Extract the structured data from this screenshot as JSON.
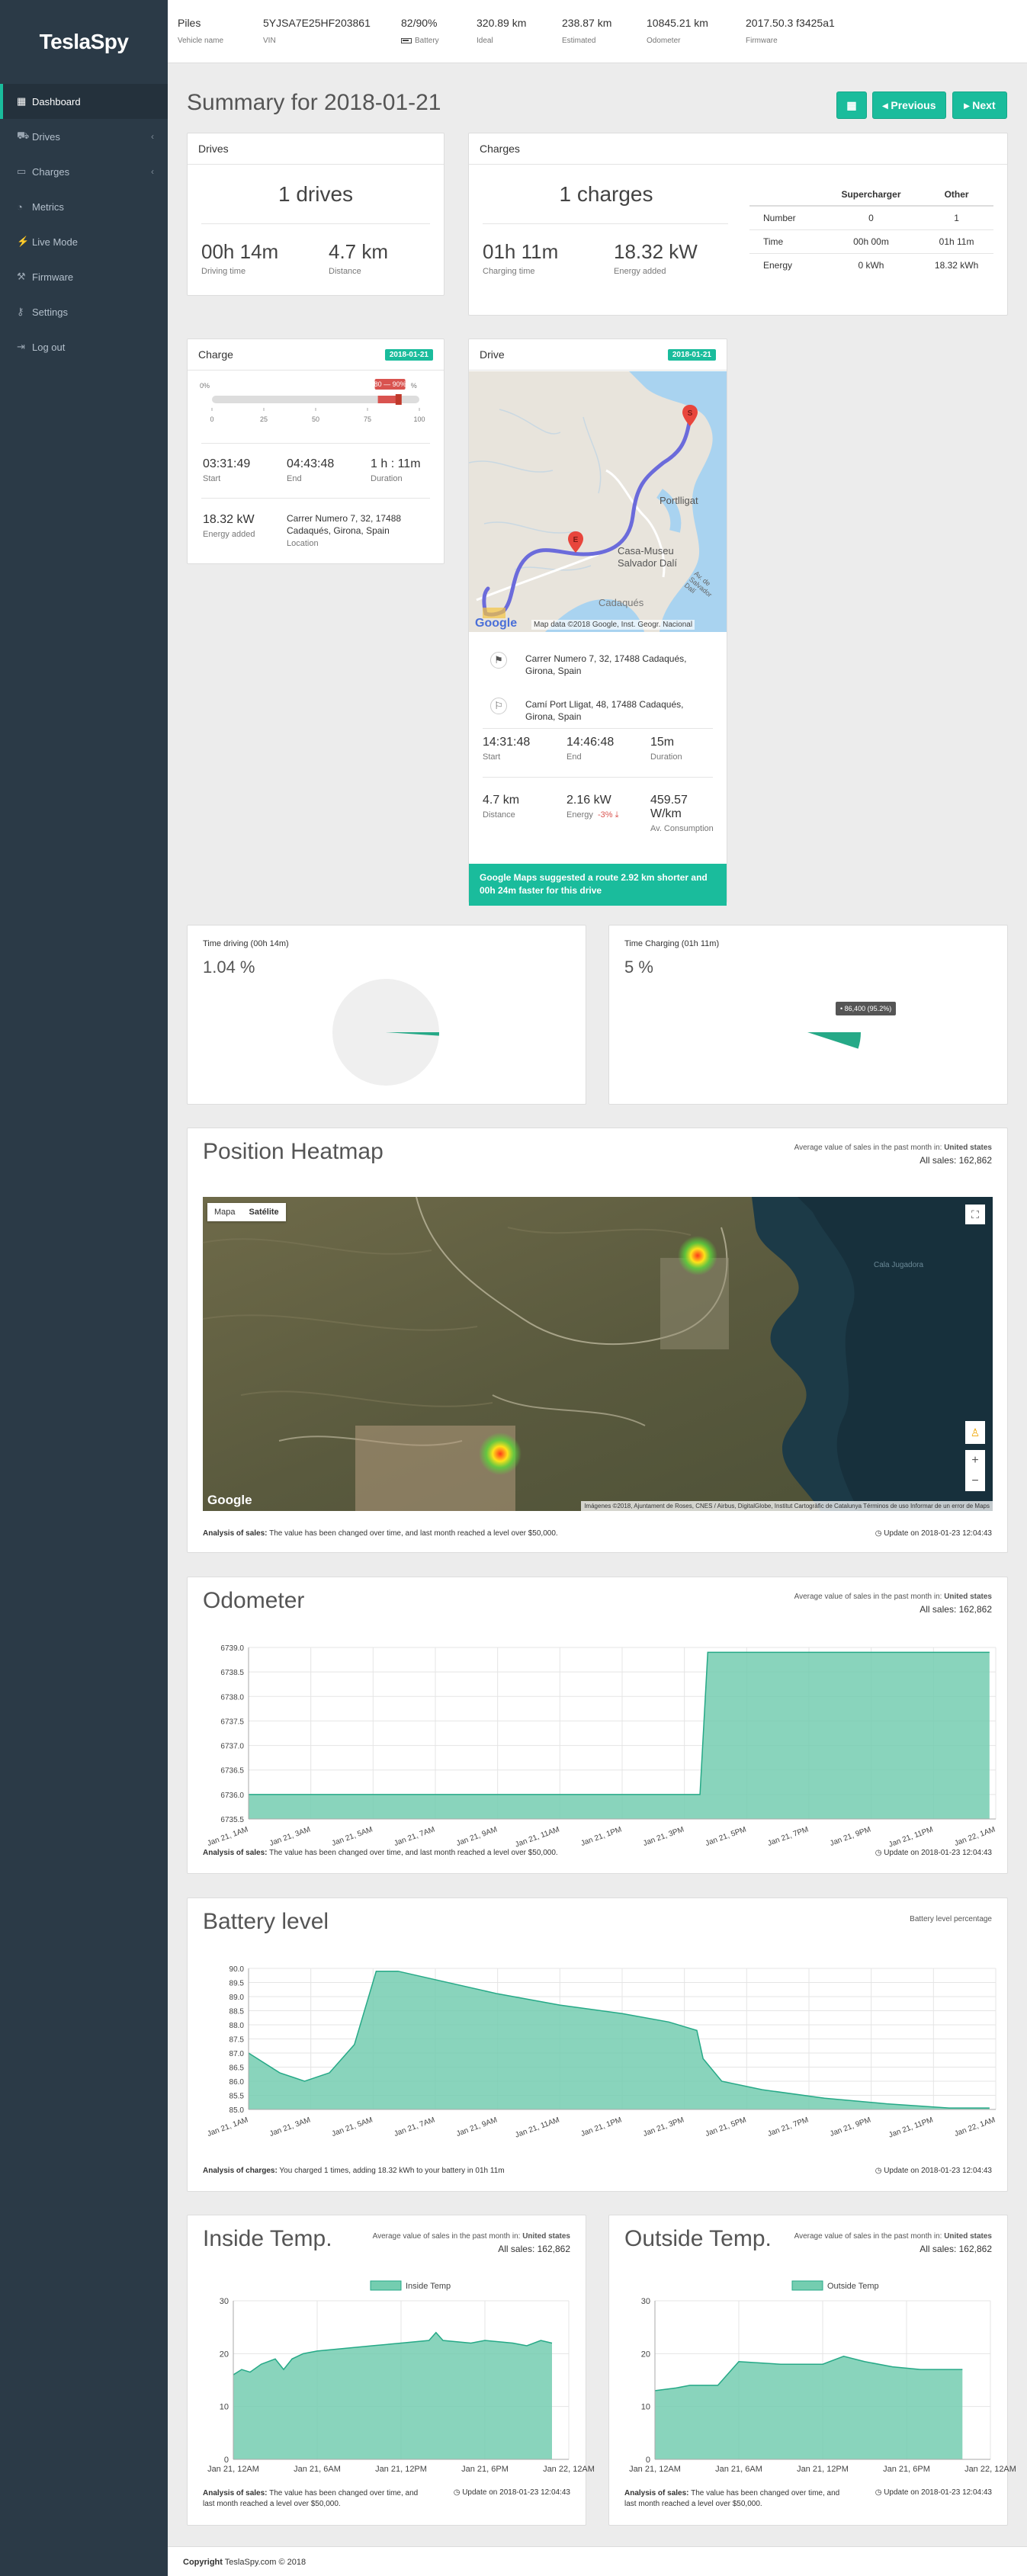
{
  "brand": "TeslaSpy",
  "nav": [
    {
      "label": "Dashboard",
      "icon": "dashboard-icon",
      "glyph": "▦",
      "active": true,
      "chevron": false
    },
    {
      "label": "Drives",
      "icon": "car-icon",
      "glyph": "⛟",
      "active": false,
      "chevron": true
    },
    {
      "label": "Charges",
      "icon": "battery-icon",
      "glyph": "▭",
      "active": false,
      "chevron": true
    },
    {
      "label": "Metrics",
      "icon": "dashboard-gauge-icon",
      "glyph": "◔",
      "active": false,
      "chevron": false
    },
    {
      "label": "Live Mode",
      "icon": "bolt-icon",
      "glyph": "⚡",
      "active": false,
      "chevron": false
    },
    {
      "label": "Firmware",
      "icon": "wrench-icon",
      "glyph": "⚒",
      "active": false,
      "chevron": false
    },
    {
      "label": "Settings",
      "icon": "key-icon",
      "glyph": "⚷",
      "active": false,
      "chevron": false
    },
    {
      "label": "Log out",
      "icon": "logout-icon",
      "glyph": "⇥",
      "active": false,
      "chevron": false
    }
  ],
  "topbar": {
    "vehicle_name": {
      "value": "Piles",
      "label": "Vehicle name"
    },
    "vin": {
      "value": "5YJSA7E25HF203861",
      "label": "VIN"
    },
    "battery": {
      "value": "82/90%",
      "label": "Battery"
    },
    "ideal": {
      "value": "320.89 km",
      "label": "Ideal"
    },
    "estimated": {
      "value": "238.87 km",
      "label": "Estimated"
    },
    "odometer": {
      "value": "10845.21 km",
      "label": "Odometer"
    },
    "firmware": {
      "value": "2017.50.3 f3425a1",
      "label": "Firmware"
    }
  },
  "page_title": "Summary for 2018-01-21",
  "buttons": {
    "calendar_glyph": "▦",
    "previous": "◂ Previous",
    "next": "▸ Next"
  },
  "drives_panel": {
    "title": "Drives",
    "count": "1 drives",
    "driving_time": "00h 14m",
    "driving_time_label": "Driving time",
    "distance": "4.7 km",
    "distance_label": "Distance"
  },
  "charges_panel": {
    "title": "Charges",
    "count": "1 charges",
    "charging_time": "01h 11m",
    "charging_time_label": "Charging time",
    "energy": "18.32 kW",
    "energy_label": "Energy added",
    "table": {
      "headers": [
        "",
        "Supercharger",
        "Other"
      ],
      "rows": [
        [
          "Number",
          "0",
          "1"
        ],
        [
          "Time",
          "00h 00m",
          "01h 11m"
        ],
        [
          "Energy",
          "0 kWh",
          "18.32 kWh"
        ]
      ]
    }
  },
  "charge_panel": {
    "title": "Charge",
    "date": "2018-01-21",
    "range_start_label": "0%",
    "range_tag": "80 — 90%",
    "range_end_label": "%",
    "range_from_pct": 80,
    "range_to_pct": 90,
    "ticks": [
      "0",
      "25",
      "50",
      "75",
      "100"
    ],
    "start": "03:31:49",
    "start_label": "Start",
    "end": "04:43:48",
    "end_label": "End",
    "duration": "1 h : 11m",
    "duration_label": "Duration",
    "energy": "18.32 kW",
    "energy_label": "Energy added",
    "location": "Carrer Numero 7, 32, 17488 Cadaqués, Girona, Spain",
    "location_label": "Location"
  },
  "drive_panel": {
    "title": "Drive",
    "date": "2018-01-21",
    "map_labels": {
      "place1": "Portlligat",
      "place2": "Casa-Museu",
      "place3": "Salvador Dalí",
      "place4": "Cadaqués",
      "place5": "Av. de Salvador Dalí",
      "copyright": "Map data ©2018 Google, Inst. Geogr. Nacional",
      "google": "Google"
    },
    "start_address": "Carrer Numero 7, 32, 17488 Cadaqués, Girona, Spain",
    "end_address": "Camí Port Lligat, 48, 17488 Cadaqués, Girona, Spain",
    "start": "14:31:48",
    "start_label": "Start",
    "end": "14:46:48",
    "end_label": "End",
    "duration": "15m",
    "duration_label": "Duration",
    "distance": "4.7 km",
    "distance_label": "Distance",
    "energy": "2.16 kW",
    "energy_label": "Energy",
    "energy_delta": "-3% ⤓",
    "consumption": "459.57 W/km",
    "consumption_label": "Av. Consumption",
    "suggestion": "Google Maps suggested a route 2.92 km shorter and 00h 24m faster for this drive"
  },
  "time_driving": {
    "title": "Time driving (00h 14m)",
    "pct": "1.04 %",
    "fraction": 0.0104
  },
  "time_charging": {
    "title": "Time Charging (01h 11m)",
    "pct": "5 %",
    "fraction": 0.05,
    "tooltip": "• 86,400 (95.2%)"
  },
  "heatmap": {
    "title": "Position Heatmap",
    "side_line1_prefix": "Average value of sales in the past month in: ",
    "side_line1_country": "United states",
    "side_line2": "All sales: 162,862",
    "map_btn1": "Mapa",
    "map_btn2": "Satélite",
    "google": "Google",
    "attribution": "Imágenes ©2018, Ajuntament de Roses, CNES / Airbus, DigitalGlobe, Institut Cartogràfic de Catalunya   Términos de uso   Informar de un error de Maps",
    "sea_label": "Cala Jugadora",
    "foot_bold": "Analysis of sales:",
    "foot_text": " The value has been changed over time, and last month reached a level over $50,000.",
    "update": "◷ Update on 2018-01-23 12:04:43"
  },
  "odometer": {
    "title": "Odometer",
    "side_line1_prefix": "Average value of sales in the past month in: ",
    "side_line1_country": "United states",
    "side_line2": "All sales: 162,862",
    "foot_bold": "Analysis of sales:",
    "foot_text": " The value has been changed over time, and last month reached a level over $50,000.",
    "update": "◷ Update on 2018-01-23 12:04:43"
  },
  "battery": {
    "title": "Battery level",
    "side": "Battery level percentage",
    "foot_bold": "Analysis of charges:",
    "foot_text": " You charged 1 times, adding 18.32 kWh to your battery in 01h 11m",
    "update": "◷ Update on 2018-01-23 12:04:43"
  },
  "inside_temp": {
    "title": "Inside Temp.",
    "side_line1_prefix": "Average value of sales in the past month in: ",
    "side_line1_country": "United states",
    "side_line2": "All sales: 162,862",
    "foot_bold": "Analysis of sales:",
    "foot_text": " The value has been changed over time, and last month reached a level over $50,000.",
    "update": "◷ Update on 2018-01-23 12:04:43"
  },
  "outside_temp": {
    "title": "Outside Temp.",
    "side_line1_prefix": "Average value of sales in the past month in: ",
    "side_line1_country": "United states",
    "side_line2": "All sales: 162,862",
    "foot_bold": "Analysis of sales:",
    "foot_text": " The value has been changed over time, and last month reached a level over $50,000.",
    "update": "◷ Update on 2018-01-23 12:04:43"
  },
  "footer": {
    "bold": "Copyright",
    "text": " TeslaSpy.com © 2018"
  },
  "colors": {
    "accent": "#1abc9c",
    "sidebar": "#2b3a47",
    "fill": "#74cdb0",
    "line": "#26a987",
    "danger": "#d9534f"
  },
  "chart_data": [
    {
      "id": "odometer",
      "type": "area",
      "x_ticks": [
        "Jan 21, 1AM",
        "Jan 21, 3AM",
        "Jan 21, 5AM",
        "Jan 21, 7AM",
        "Jan 21, 9AM",
        "Jan 21, 11AM",
        "Jan 21, 1PM",
        "Jan 21, 3PM",
        "Jan 21, 5PM",
        "Jan 21, 7PM",
        "Jan 21, 9PM",
        "Jan 21, 11PM",
        "Jan 22, 1AM"
      ],
      "y_ticks": [
        "6735.5",
        "6736.0",
        "6736.5",
        "6737.0",
        "6737.5",
        "6738.0",
        "6738.5",
        "6739.0"
      ],
      "ylim": [
        6735.5,
        6739.0
      ],
      "x_hours": [
        0,
        14.5,
        14.75,
        23.8
      ],
      "values": [
        6736.0,
        6736.0,
        6738.9,
        6738.9
      ]
    },
    {
      "id": "battery",
      "type": "area",
      "x_ticks": [
        "Jan 21, 1AM",
        "Jan 21, 3AM",
        "Jan 21, 5AM",
        "Jan 21, 7AM",
        "Jan 21, 9AM",
        "Jan 21, 11AM",
        "Jan 21, 1PM",
        "Jan 21, 3PM",
        "Jan 21, 5PM",
        "Jan 21, 7PM",
        "Jan 21, 9PM",
        "Jan 21, 11PM",
        "Jan 22, 1AM"
      ],
      "y_ticks": [
        "85.0",
        "85.5",
        "86.0",
        "86.5",
        "87.0",
        "87.5",
        "88.0",
        "88.5",
        "89.0",
        "89.5",
        "90.0"
      ],
      "ylim": [
        85.0,
        90.0
      ],
      "x_hours": [
        0,
        1,
        1.8,
        2.6,
        3.4,
        4.1,
        4.8,
        6,
        8,
        10,
        12,
        13.5,
        14.4,
        14.6,
        15.2,
        16.5,
        18.5,
        20.5,
        22.5,
        23.8
      ],
      "values": [
        87.0,
        86.3,
        86.0,
        86.3,
        87.3,
        89.9,
        89.9,
        89.6,
        89.1,
        88.7,
        88.4,
        88.1,
        87.8,
        86.8,
        86.0,
        85.7,
        85.4,
        85.2,
        85.05,
        85.05
      ]
    },
    {
      "id": "inside_temp",
      "type": "area",
      "legend": "Inside Temp",
      "x_ticks": [
        "Jan 21, 12AM",
        "Jan 21, 6AM",
        "Jan 21, 12PM",
        "Jan 21, 6PM",
        "Jan 22, 12AM"
      ],
      "y_ticks": [
        "0",
        "10",
        "20",
        "30"
      ],
      "ylim": [
        0,
        30
      ],
      "x_hours": [
        0,
        0.6,
        1.2,
        2,
        3,
        3.6,
        4.2,
        5,
        6,
        8,
        10,
        12,
        14,
        14.5,
        15,
        17,
        18,
        20,
        21,
        22,
        22.8
      ],
      "values": [
        16,
        17,
        16.5,
        18,
        19,
        17,
        19,
        20,
        20.5,
        21,
        21.5,
        22,
        22.5,
        24,
        22.5,
        22,
        22.5,
        22,
        21.5,
        22.5,
        22
      ]
    },
    {
      "id": "outside_temp",
      "type": "area",
      "legend": "Outside Temp",
      "x_ticks": [
        "Jan 21, 12AM",
        "Jan 21, 6AM",
        "Jan 21, 12PM",
        "Jan 21, 6PM",
        "Jan 22, 12AM"
      ],
      "y_ticks": [
        "0",
        "10",
        "20",
        "30"
      ],
      "ylim": [
        0,
        30
      ],
      "x_hours": [
        0,
        1.5,
        2.5,
        4.5,
        6,
        9,
        12,
        13.5,
        15,
        17,
        19,
        22
      ],
      "values": [
        13,
        13.5,
        14,
        14,
        18.5,
        18,
        18,
        19.5,
        18.5,
        17.5,
        17,
        17
      ]
    }
  ]
}
